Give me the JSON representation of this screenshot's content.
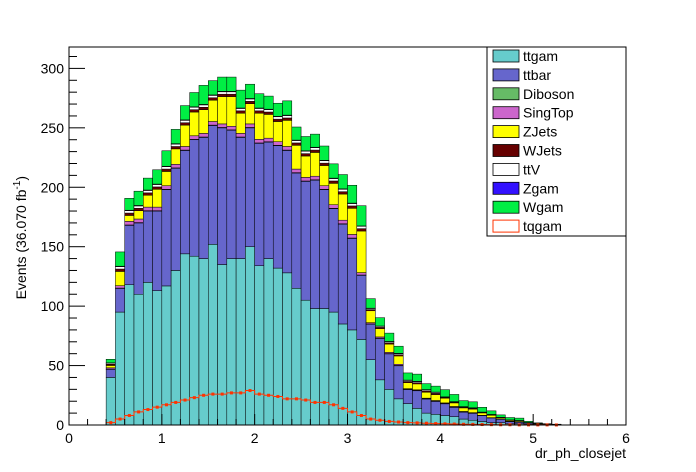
{
  "chart_data": {
    "type": "bar",
    "stacked": true,
    "title": "",
    "xlabel": "dr_ph_closejet",
    "ylabel": "Events (36.070 fb",
    "ylabel_sup": "-1",
    "ylabel_close": ")",
    "xlim": [
      0,
      6
    ],
    "ylim": [
      0,
      318
    ],
    "bin_width": 0.1,
    "x_ticks": [
      0,
      1,
      2,
      3,
      4,
      5,
      6
    ],
    "x_tick_labels": [
      "0",
      "1",
      "2",
      "3",
      "4",
      "5",
      "6"
    ],
    "y_ticks": [
      0,
      50,
      100,
      150,
      200,
      250,
      300
    ],
    "y_tick_labels": [
      "0",
      "50",
      "100",
      "150",
      "200",
      "250",
      "300"
    ],
    "legend_position": "top-right",
    "x": [
      0.45,
      0.55,
      0.65,
      0.75,
      0.85,
      0.95,
      1.05,
      1.15,
      1.25,
      1.35,
      1.45,
      1.55,
      1.65,
      1.75,
      1.85,
      1.95,
      2.05,
      2.15,
      2.25,
      2.35,
      2.45,
      2.55,
      2.65,
      2.75,
      2.85,
      2.95,
      3.05,
      3.15,
      3.25,
      3.35,
      3.45,
      3.55,
      3.65,
      3.75,
      3.85,
      3.95,
      4.05,
      4.15,
      4.25,
      4.35,
      4.45,
      4.55,
      4.65,
      4.75,
      4.85,
      4.95,
      5.05,
      5.15,
      5.25
    ],
    "stack": [
      {
        "name": "ttgam",
        "color": "#66cccc",
        "values": [
          40,
          95,
          118,
          110,
          120,
          113,
          117,
          130,
          144,
          142,
          140,
          152,
          135,
          140,
          140,
          150,
          134,
          140,
          132,
          128,
          115,
          105,
          98,
          98,
          95,
          85,
          80,
          72,
          55,
          38,
          30,
          22,
          18,
          14,
          10,
          9,
          8,
          7,
          5,
          4,
          3,
          2,
          2,
          1,
          1,
          0.5,
          0.5,
          0.3,
          0.2
        ]
      },
      {
        "name": "ttbar",
        "color": "#6666cc",
        "values": [
          7,
          20,
          50,
          60,
          60,
          67,
          81,
          86,
          87,
          98,
          102,
          100,
          115,
          108,
          102,
          100,
          103,
          98,
          103,
          103,
          97,
          100,
          108,
          100,
          87,
          84,
          77,
          54,
          30,
          35,
          30,
          28,
          12,
          15,
          12,
          11,
          10,
          8,
          6,
          6,
          5,
          4,
          3,
          2,
          1.5,
          1,
          0.5,
          0.3,
          0.2
        ]
      },
      {
        "name": "Diboson",
        "color": "#66bb66",
        "values": [
          0.1,
          0.2,
          0.3,
          0.3,
          0.3,
          0.3,
          0.3,
          0.3,
          0.3,
          0.3,
          0.3,
          0.3,
          0.3,
          0.3,
          0.3,
          0.3,
          0.3,
          0.3,
          0.3,
          0.3,
          0.3,
          0.3,
          0.3,
          0.3,
          0.3,
          0.3,
          0.3,
          0.2,
          0.1,
          0.1,
          0.1,
          0.1,
          0.1,
          0.1,
          0.1,
          0.1,
          0.1,
          0.1,
          0.1,
          0.1,
          0,
          0,
          0,
          0,
          0,
          0,
          0,
          0,
          0
        ]
      },
      {
        "name": "SingTop",
        "color": "#cc66cc",
        "values": [
          1,
          2,
          3,
          3,
          3,
          3,
          3,
          3,
          3,
          3,
          3,
          3,
          3,
          3,
          3,
          3,
          3,
          3,
          3,
          3,
          3,
          3,
          3,
          3,
          3,
          3,
          3,
          2,
          1,
          1,
          1,
          1,
          0.5,
          0.5,
          0.5,
          0.5,
          0.5,
          0.5,
          0.3,
          0.3,
          0.2,
          0.2,
          0.1,
          0.1,
          0.1,
          0,
          0,
          0,
          0
        ]
      },
      {
        "name": "ZJets",
        "color": "#ffff00",
        "values": [
          2,
          12,
          5,
          7,
          10,
          15,
          12,
          13,
          18,
          20,
          20,
          18,
          23,
          25,
          17,
          17,
          22,
          20,
          17,
          22,
          20,
          18,
          20,
          17,
          18,
          22,
          22,
          35,
          10,
          7,
          7,
          7,
          5,
          5,
          5,
          5,
          4,
          3,
          3,
          3,
          2,
          2,
          1,
          1,
          1,
          0.5,
          0.3,
          0.2,
          0.1
        ]
      },
      {
        "name": "WJets",
        "color": "#660000",
        "values": [
          1,
          2,
          2,
          2,
          2,
          2,
          2,
          2,
          2,
          2,
          2,
          2,
          2,
          2,
          2,
          2,
          2,
          2,
          2,
          2,
          2,
          2,
          2,
          2,
          2,
          2,
          2,
          2,
          1,
          1,
          1,
          1,
          1,
          1,
          1,
          1,
          0.5,
          0.5,
          0.5,
          0.5,
          0.3,
          0.3,
          0.2,
          0.1,
          0.1,
          0,
          0,
          0,
          0
        ]
      },
      {
        "name": "ttV",
        "color": "#ffffff",
        "values": [
          1,
          2,
          2,
          2,
          2,
          2,
          2,
          2,
          2,
          2,
          2,
          2,
          2,
          2,
          2,
          2,
          2,
          2,
          2,
          2,
          2,
          2,
          2,
          2,
          2,
          2,
          2,
          2,
          1,
          1,
          1,
          1,
          1,
          1,
          1,
          1,
          0.5,
          0.5,
          0.5,
          0.5,
          0.3,
          0.3,
          0.2,
          0.1,
          0.1,
          0.1,
          0,
          0,
          0
        ]
      },
      {
        "name": "Zgam",
        "color": "#3311ff",
        "values": [
          0.2,
          0.4,
          0.4,
          0.4,
          0.4,
          0.4,
          0.4,
          0.4,
          0.4,
          0.4,
          0.4,
          0.4,
          0.4,
          0.4,
          0.4,
          0.4,
          0.4,
          0.4,
          0.4,
          0.4,
          0.4,
          0.4,
          0.4,
          0.4,
          0.4,
          0.4,
          0.4,
          0.3,
          0.2,
          0.2,
          0.2,
          0.2,
          0.2,
          0.2,
          0.2,
          0.1,
          0.1,
          0.1,
          0.1,
          0.1,
          0.1,
          0.1,
          0,
          0,
          0,
          0,
          0,
          0,
          0
        ]
      },
      {
        "name": "Wgam",
        "color": "#00ee44",
        "values": [
          3,
          12,
          10,
          12,
          10,
          12,
          13,
          12,
          12,
          12,
          16,
          12,
          12,
          12,
          15,
          12,
          12,
          11,
          11,
          12,
          11,
          12,
          11,
          12,
          12,
          12,
          15,
          17,
          8,
          7,
          7,
          6,
          6,
          6,
          5,
          5,
          6,
          6,
          5,
          5,
          4,
          3,
          2,
          2,
          2,
          1,
          0.5,
          0.3,
          0.2
        ]
      }
    ],
    "overlay": {
      "name": "tqgam",
      "color": "#ff3300",
      "values": [
        2,
        5,
        8,
        11,
        13,
        15,
        17,
        19,
        21,
        23,
        25,
        26,
        26,
        27,
        27,
        29,
        26,
        25,
        24,
        22,
        22,
        21,
        19,
        19,
        17,
        14,
        11,
        8,
        5,
        4,
        3,
        2.5,
        2,
        1.8,
        1.5,
        1.2,
        1,
        0.8,
        0.6,
        0.5,
        0.4,
        0.3,
        0.2,
        0.2,
        0.1,
        0.1,
        0.1,
        0.1,
        0.05
      ]
    },
    "legend": [
      {
        "label": "ttgam",
        "color": "#66cccc",
        "style": "fill"
      },
      {
        "label": "ttbar",
        "color": "#6666cc",
        "style": "fill"
      },
      {
        "label": "Diboson",
        "color": "#66bb66",
        "style": "fill"
      },
      {
        "label": "SingTop",
        "color": "#cc66cc",
        "style": "fill"
      },
      {
        "label": "ZJets",
        "color": "#ffff00",
        "style": "fill"
      },
      {
        "label": "WJets",
        "color": "#660000",
        "style": "fill"
      },
      {
        "label": "ttV",
        "color": "#ffffff",
        "style": "fill"
      },
      {
        "label": "Zgam",
        "color": "#3311ff",
        "style": "fill"
      },
      {
        "label": "Wgam",
        "color": "#00ee44",
        "style": "fill"
      },
      {
        "label": "tqgam",
        "color": "#ff3300",
        "style": "line"
      }
    ]
  }
}
